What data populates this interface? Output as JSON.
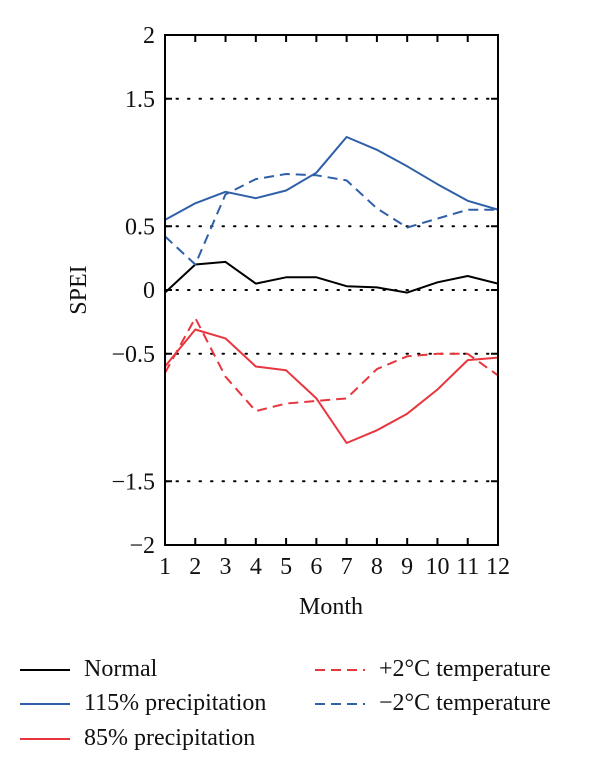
{
  "chart_data": {
    "type": "line",
    "title": "",
    "xlabel": "Month",
    "ylabel": "SPEI",
    "x": [
      1,
      2,
      3,
      4,
      5,
      6,
      7,
      8,
      9,
      10,
      11,
      12
    ],
    "xticks": [
      "1",
      "2",
      "3",
      "4",
      "5",
      "6",
      "7",
      "8",
      "9",
      "10",
      "11",
      "12"
    ],
    "xlim": [
      1,
      12
    ],
    "ylim": [
      -2,
      2
    ],
    "yticks": [
      "−2",
      "−1.5",
      "−0.5",
      "0",
      "0.5",
      "1.5",
      "2"
    ],
    "ytick_values": [
      -2,
      -1.5,
      -0.5,
      0,
      0.5,
      1.5,
      2
    ],
    "grid": "dotted horizontal",
    "legend_position": "bottom",
    "series": [
      {
        "name": "Normal",
        "color": "#000000",
        "dash": "solid",
        "values": [
          -0.02,
          0.2,
          0.22,
          0.05,
          0.1,
          0.1,
          0.03,
          0.02,
          -0.02,
          0.06,
          0.11,
          0.05
        ]
      },
      {
        "name": "115% precipitation",
        "color": "#2e5fa8",
        "dash": "solid",
        "values": [
          0.55,
          0.68,
          0.77,
          0.72,
          0.78,
          0.92,
          1.2,
          1.1,
          0.97,
          0.83,
          0.7,
          0.63
        ]
      },
      {
        "name": "85% precipitation",
        "color": "#e8363f",
        "dash": "solid",
        "values": [
          -0.6,
          -0.31,
          -0.38,
          -0.6,
          -0.63,
          -0.85,
          -1.2,
          -1.1,
          -0.97,
          -0.78,
          -0.55,
          -0.53
        ]
      },
      {
        "name": "+2°C temperature",
        "color": "#e8363f",
        "dash": "dashed",
        "values": [
          -0.65,
          -0.22,
          -0.68,
          -0.95,
          -0.89,
          -0.87,
          -0.85,
          -0.62,
          -0.52,
          -0.5,
          -0.5,
          -0.67
        ]
      },
      {
        "name": "−2°C temperature",
        "color": "#2e5fa8",
        "dash": "dashed",
        "values": [
          0.42,
          0.2,
          0.75,
          0.87,
          0.91,
          0.9,
          0.86,
          0.64,
          0.49,
          0.56,
          0.63,
          0.63
        ]
      }
    ],
    "legend": {
      "normal": "Normal",
      "p115": "115% precipitation",
      "p85": "85% precipitation",
      "tplus": "+2°C temperature",
      "tminus": "−2°C temperature"
    }
  }
}
